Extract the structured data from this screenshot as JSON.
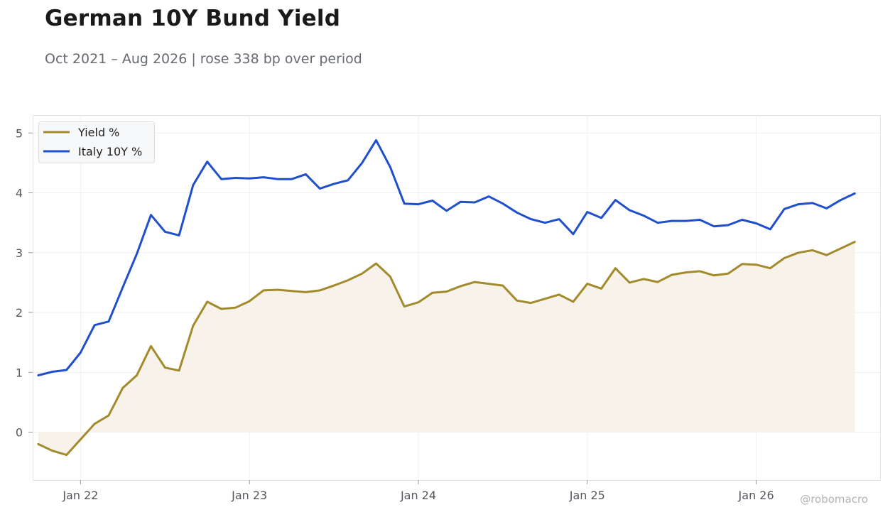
{
  "title": "German 10Y Bund Yield",
  "subtitle": "Oct 2021 – Aug 2026 | rose 338 bp over period",
  "watermark": "@robomacro",
  "colors": {
    "yield": "#a38a2c",
    "italy": "#1f4fcc",
    "area": "#f7f3ea"
  },
  "chart_data": {
    "type": "line",
    "x_ticks": [
      "Jan 22",
      "Jan 23",
      "Jan 24",
      "Jan 25",
      "Jan 26"
    ],
    "y_ticks": [
      0,
      1,
      2,
      3,
      4,
      5
    ],
    "ylim": [
      -0.8,
      5.3
    ],
    "grid": true,
    "legend_position": "top-left",
    "x": [
      "2021-10",
      "2021-11",
      "2021-12",
      "2022-01",
      "2022-02",
      "2022-03",
      "2022-04",
      "2022-05",
      "2022-06",
      "2022-07",
      "2022-08",
      "2022-09",
      "2022-10",
      "2022-11",
      "2022-12",
      "2023-01",
      "2023-02",
      "2023-03",
      "2023-04",
      "2023-05",
      "2023-06",
      "2023-07",
      "2023-08",
      "2023-09",
      "2023-10",
      "2023-11",
      "2023-12",
      "2024-01",
      "2024-02",
      "2024-03",
      "2024-04",
      "2024-05",
      "2024-06",
      "2024-07",
      "2024-08",
      "2024-09",
      "2024-10",
      "2024-11",
      "2024-12",
      "2025-01",
      "2025-02",
      "2025-03",
      "2025-04",
      "2025-05",
      "2025-06",
      "2025-07",
      "2025-08",
      "2025-09",
      "2025-10",
      "2025-11",
      "2025-12",
      "2026-01",
      "2026-02",
      "2026-03",
      "2026-04",
      "2026-05",
      "2026-06",
      "2026-07",
      "2026-08"
    ],
    "series": [
      {
        "name": "Yield %",
        "color": "#a38a2c",
        "fill": true,
        "values": [
          -0.2,
          -0.31,
          -0.38,
          -0.12,
          0.14,
          0.28,
          0.74,
          0.95,
          1.44,
          1.08,
          1.03,
          1.78,
          2.18,
          2.06,
          2.08,
          2.19,
          2.37,
          2.38,
          2.36,
          2.34,
          2.37,
          2.45,
          2.54,
          2.65,
          2.82,
          2.6,
          2.1,
          2.17,
          2.33,
          2.35,
          2.44,
          2.51,
          2.48,
          2.45,
          2.2,
          2.16,
          2.23,
          2.3,
          2.18,
          2.48,
          2.4,
          2.74,
          2.5,
          2.56,
          2.51,
          2.63,
          2.67,
          2.69,
          2.62,
          2.65,
          2.81,
          2.8,
          2.74,
          2.91,
          3.0,
          3.04,
          2.96,
          3.07,
          3.18
        ]
      },
      {
        "name": "Italy 10Y %",
        "color": "#1f4fcc",
        "fill": false,
        "values": [
          0.95,
          1.01,
          1.04,
          1.33,
          1.79,
          1.85,
          2.42,
          2.98,
          3.63,
          3.35,
          3.29,
          4.13,
          4.52,
          4.23,
          4.25,
          4.24,
          4.26,
          4.23,
          4.23,
          4.31,
          4.07,
          4.15,
          4.21,
          4.5,
          4.88,
          4.43,
          3.82,
          3.81,
          3.87,
          3.7,
          3.85,
          3.84,
          3.94,
          3.82,
          3.67,
          3.56,
          3.5,
          3.56,
          3.31,
          3.68,
          3.58,
          3.88,
          3.71,
          3.62,
          3.5,
          3.53,
          3.53,
          3.55,
          3.44,
          3.46,
          3.55,
          3.49,
          3.39,
          3.73,
          3.81,
          3.83,
          3.74,
          3.88,
          3.99
        ]
      }
    ]
  }
}
